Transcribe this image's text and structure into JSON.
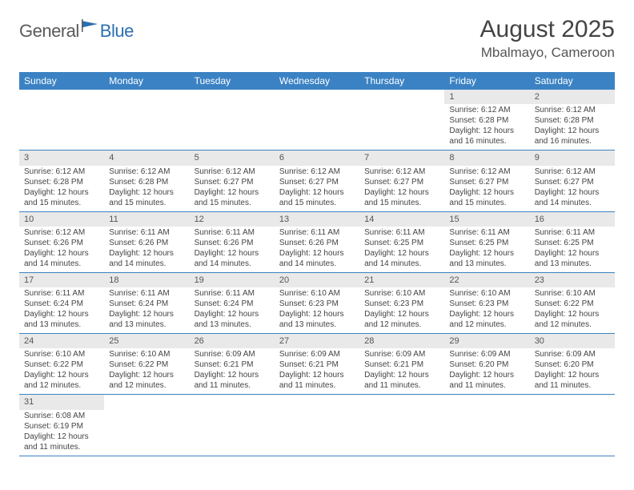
{
  "logo": {
    "part1": "General",
    "part2": "Blue"
  },
  "title": "August 2025",
  "location": "Mbalmayo, Cameroon",
  "colors": {
    "header_bg": "#3b82c4",
    "header_text": "#ffffff",
    "daynum_bg": "#e9e9e9",
    "cell_border": "#3b82c4",
    "logo_gray": "#5a5a5a",
    "logo_blue": "#2b6fb0"
  },
  "dayHeaders": [
    "Sunday",
    "Monday",
    "Tuesday",
    "Wednesday",
    "Thursday",
    "Friday",
    "Saturday"
  ],
  "weeks": [
    [
      null,
      null,
      null,
      null,
      null,
      {
        "n": "1",
        "sr": "Sunrise: 6:12 AM",
        "ss": "Sunset: 6:28 PM",
        "dl": "Daylight: 12 hours and 16 minutes."
      },
      {
        "n": "2",
        "sr": "Sunrise: 6:12 AM",
        "ss": "Sunset: 6:28 PM",
        "dl": "Daylight: 12 hours and 16 minutes."
      }
    ],
    [
      {
        "n": "3",
        "sr": "Sunrise: 6:12 AM",
        "ss": "Sunset: 6:28 PM",
        "dl": "Daylight: 12 hours and 15 minutes."
      },
      {
        "n": "4",
        "sr": "Sunrise: 6:12 AM",
        "ss": "Sunset: 6:28 PM",
        "dl": "Daylight: 12 hours and 15 minutes."
      },
      {
        "n": "5",
        "sr": "Sunrise: 6:12 AM",
        "ss": "Sunset: 6:27 PM",
        "dl": "Daylight: 12 hours and 15 minutes."
      },
      {
        "n": "6",
        "sr": "Sunrise: 6:12 AM",
        "ss": "Sunset: 6:27 PM",
        "dl": "Daylight: 12 hours and 15 minutes."
      },
      {
        "n": "7",
        "sr": "Sunrise: 6:12 AM",
        "ss": "Sunset: 6:27 PM",
        "dl": "Daylight: 12 hours and 15 minutes."
      },
      {
        "n": "8",
        "sr": "Sunrise: 6:12 AM",
        "ss": "Sunset: 6:27 PM",
        "dl": "Daylight: 12 hours and 15 minutes."
      },
      {
        "n": "9",
        "sr": "Sunrise: 6:12 AM",
        "ss": "Sunset: 6:27 PM",
        "dl": "Daylight: 12 hours and 14 minutes."
      }
    ],
    [
      {
        "n": "10",
        "sr": "Sunrise: 6:12 AM",
        "ss": "Sunset: 6:26 PM",
        "dl": "Daylight: 12 hours and 14 minutes."
      },
      {
        "n": "11",
        "sr": "Sunrise: 6:11 AM",
        "ss": "Sunset: 6:26 PM",
        "dl": "Daylight: 12 hours and 14 minutes."
      },
      {
        "n": "12",
        "sr": "Sunrise: 6:11 AM",
        "ss": "Sunset: 6:26 PM",
        "dl": "Daylight: 12 hours and 14 minutes."
      },
      {
        "n": "13",
        "sr": "Sunrise: 6:11 AM",
        "ss": "Sunset: 6:26 PM",
        "dl": "Daylight: 12 hours and 14 minutes."
      },
      {
        "n": "14",
        "sr": "Sunrise: 6:11 AM",
        "ss": "Sunset: 6:25 PM",
        "dl": "Daylight: 12 hours and 14 minutes."
      },
      {
        "n": "15",
        "sr": "Sunrise: 6:11 AM",
        "ss": "Sunset: 6:25 PM",
        "dl": "Daylight: 12 hours and 13 minutes."
      },
      {
        "n": "16",
        "sr": "Sunrise: 6:11 AM",
        "ss": "Sunset: 6:25 PM",
        "dl": "Daylight: 12 hours and 13 minutes."
      }
    ],
    [
      {
        "n": "17",
        "sr": "Sunrise: 6:11 AM",
        "ss": "Sunset: 6:24 PM",
        "dl": "Daylight: 12 hours and 13 minutes."
      },
      {
        "n": "18",
        "sr": "Sunrise: 6:11 AM",
        "ss": "Sunset: 6:24 PM",
        "dl": "Daylight: 12 hours and 13 minutes."
      },
      {
        "n": "19",
        "sr": "Sunrise: 6:11 AM",
        "ss": "Sunset: 6:24 PM",
        "dl": "Daylight: 12 hours and 13 minutes."
      },
      {
        "n": "20",
        "sr": "Sunrise: 6:10 AM",
        "ss": "Sunset: 6:23 PM",
        "dl": "Daylight: 12 hours and 13 minutes."
      },
      {
        "n": "21",
        "sr": "Sunrise: 6:10 AM",
        "ss": "Sunset: 6:23 PM",
        "dl": "Daylight: 12 hours and 12 minutes."
      },
      {
        "n": "22",
        "sr": "Sunrise: 6:10 AM",
        "ss": "Sunset: 6:23 PM",
        "dl": "Daylight: 12 hours and 12 minutes."
      },
      {
        "n": "23",
        "sr": "Sunrise: 6:10 AM",
        "ss": "Sunset: 6:22 PM",
        "dl": "Daylight: 12 hours and 12 minutes."
      }
    ],
    [
      {
        "n": "24",
        "sr": "Sunrise: 6:10 AM",
        "ss": "Sunset: 6:22 PM",
        "dl": "Daylight: 12 hours and 12 minutes."
      },
      {
        "n": "25",
        "sr": "Sunrise: 6:10 AM",
        "ss": "Sunset: 6:22 PM",
        "dl": "Daylight: 12 hours and 12 minutes."
      },
      {
        "n": "26",
        "sr": "Sunrise: 6:09 AM",
        "ss": "Sunset: 6:21 PM",
        "dl": "Daylight: 12 hours and 11 minutes."
      },
      {
        "n": "27",
        "sr": "Sunrise: 6:09 AM",
        "ss": "Sunset: 6:21 PM",
        "dl": "Daylight: 12 hours and 11 minutes."
      },
      {
        "n": "28",
        "sr": "Sunrise: 6:09 AM",
        "ss": "Sunset: 6:21 PM",
        "dl": "Daylight: 12 hours and 11 minutes."
      },
      {
        "n": "29",
        "sr": "Sunrise: 6:09 AM",
        "ss": "Sunset: 6:20 PM",
        "dl": "Daylight: 12 hours and 11 minutes."
      },
      {
        "n": "30",
        "sr": "Sunrise: 6:09 AM",
        "ss": "Sunset: 6:20 PM",
        "dl": "Daylight: 12 hours and 11 minutes."
      }
    ],
    [
      {
        "n": "31",
        "sr": "Sunrise: 6:08 AM",
        "ss": "Sunset: 6:19 PM",
        "dl": "Daylight: 12 hours and 11 minutes."
      },
      null,
      null,
      null,
      null,
      null,
      null
    ]
  ]
}
